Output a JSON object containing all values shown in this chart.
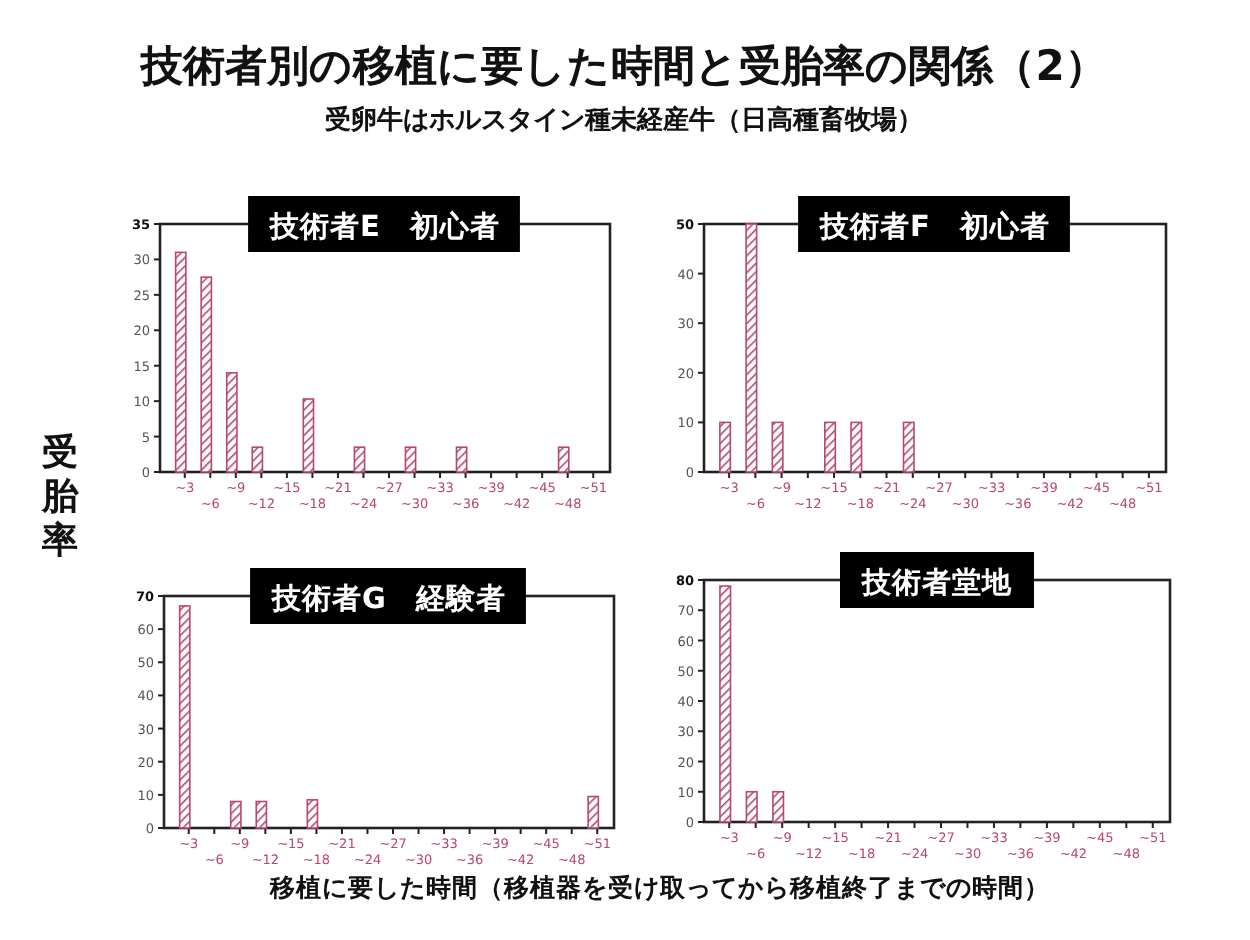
{
  "chart_data": [
    {
      "type": "other",
      "title": "技術者別の移植に要した時間と受胎率の関係（2）",
      "subtitle": "受卵牛はホルスタイン種未経産牛（日高種畜牧場）",
      "annotations": [
        "受胎率",
        "移植に要した時間（移植器を受け取ってから移植終了までの時間）"
      ]
    },
    {
      "type": "bar",
      "title": "技術者E　初心者",
      "categories": [
        "~3",
        "~6",
        "~9",
        "~12",
        "~15",
        "~18",
        "~21",
        "~24",
        "~27",
        "~30",
        "~33",
        "~36",
        "~39",
        "~42",
        "~45",
        "~48",
        "~51"
      ],
      "values": [
        31,
        27.5,
        14,
        3.5,
        0,
        10.3,
        0,
        3.5,
        0,
        3.5,
        0,
        3.5,
        0,
        0,
        0,
        3.5,
        0
      ],
      "color": "#b8486a",
      "ylim": [
        0,
        35
      ],
      "yticks": [
        0,
        5,
        10,
        15,
        20,
        25,
        30,
        35
      ]
    },
    {
      "type": "bar",
      "title": "技術者F　初心者",
      "categories": [
        "~3",
        "~6",
        "~9",
        "~12",
        "~15",
        "~18",
        "~21",
        "~24",
        "~27",
        "~30",
        "~33",
        "~36",
        "~39",
        "~42",
        "~45",
        "~48",
        "~51"
      ],
      "values": [
        10,
        50,
        10,
        0,
        10,
        10,
        0,
        10,
        0,
        0,
        0,
        0,
        0,
        0,
        0,
        0,
        0
      ],
      "color": "#b8486a",
      "ylim": [
        0,
        50
      ],
      "yticks": [
        0,
        10,
        20,
        30,
        40,
        50
      ]
    },
    {
      "type": "bar",
      "title": "技術者G　経験者",
      "categories": [
        "~3",
        "~6",
        "~9",
        "~12",
        "~15",
        "~18",
        "~21",
        "~24",
        "~27",
        "~30",
        "~33",
        "~36",
        "~39",
        "~42",
        "~45",
        "~48",
        "~51"
      ],
      "values": [
        67,
        0,
        8,
        8,
        0,
        8.5,
        0,
        0,
        0,
        0,
        0,
        0,
        0,
        0,
        0,
        0,
        9.5
      ],
      "color": "#b8486a",
      "ylim": [
        0,
        70
      ],
      "yticks": [
        0,
        10,
        20,
        30,
        40,
        50,
        60,
        70
      ]
    },
    {
      "type": "bar",
      "title": "技術者堂地",
      "categories": [
        "~3",
        "~6",
        "~9",
        "~12",
        "~15",
        "~18",
        "~21",
        "~24",
        "~27",
        "~30",
        "~33",
        "~36",
        "~39",
        "~42",
        "~45",
        "~48",
        "~51"
      ],
      "values": [
        78,
        10,
        10,
        0,
        0,
        0,
        0,
        0,
        0,
        0,
        0,
        0,
        0,
        0,
        0,
        0,
        0
      ],
      "color": "#b8486a",
      "ylim": [
        0,
        80
      ],
      "yticks": [
        0,
        10,
        20,
        30,
        40,
        50,
        60,
        70,
        80
      ]
    }
  ]
}
